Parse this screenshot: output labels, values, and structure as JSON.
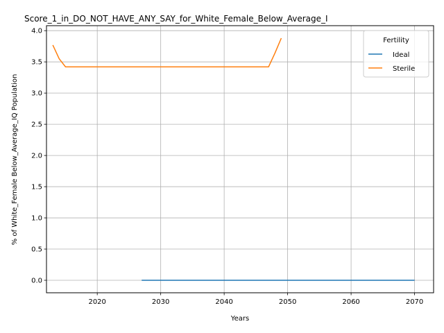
{
  "chart_data": {
    "type": "line",
    "title": "Score_1_in_DO_NOT_HAVE_ANY_SAY_for_White_Female_Below_Average_I",
    "xlabel": "Years",
    "ylabel": "% of White_Female Below_Average_IQ Population",
    "xlim": [
      2012,
      2073
    ],
    "ylim": [
      -0.2,
      4.08
    ],
    "xticks": [
      2020,
      2030,
      2040,
      2050,
      2060,
      2070
    ],
    "yticks": [
      0.0,
      0.5,
      1.0,
      1.5,
      2.0,
      2.5,
      3.0,
      3.5,
      4.0
    ],
    "grid": true,
    "legend": {
      "title": "Fertility",
      "position": "top-right"
    },
    "series": [
      {
        "name": "Ideal",
        "color": "#1f77b4",
        "x": [
          2027,
          2070
        ],
        "y": [
          0.0,
          0.0
        ]
      },
      {
        "name": "Sterile",
        "color": "#ff7f0e",
        "x": [
          2013,
          2014,
          2015,
          2020,
          2030,
          2040,
          2047,
          2048,
          2049
        ],
        "y": [
          3.77,
          3.55,
          3.42,
          3.42,
          3.42,
          3.42,
          3.42,
          3.64,
          3.88
        ]
      }
    ]
  }
}
